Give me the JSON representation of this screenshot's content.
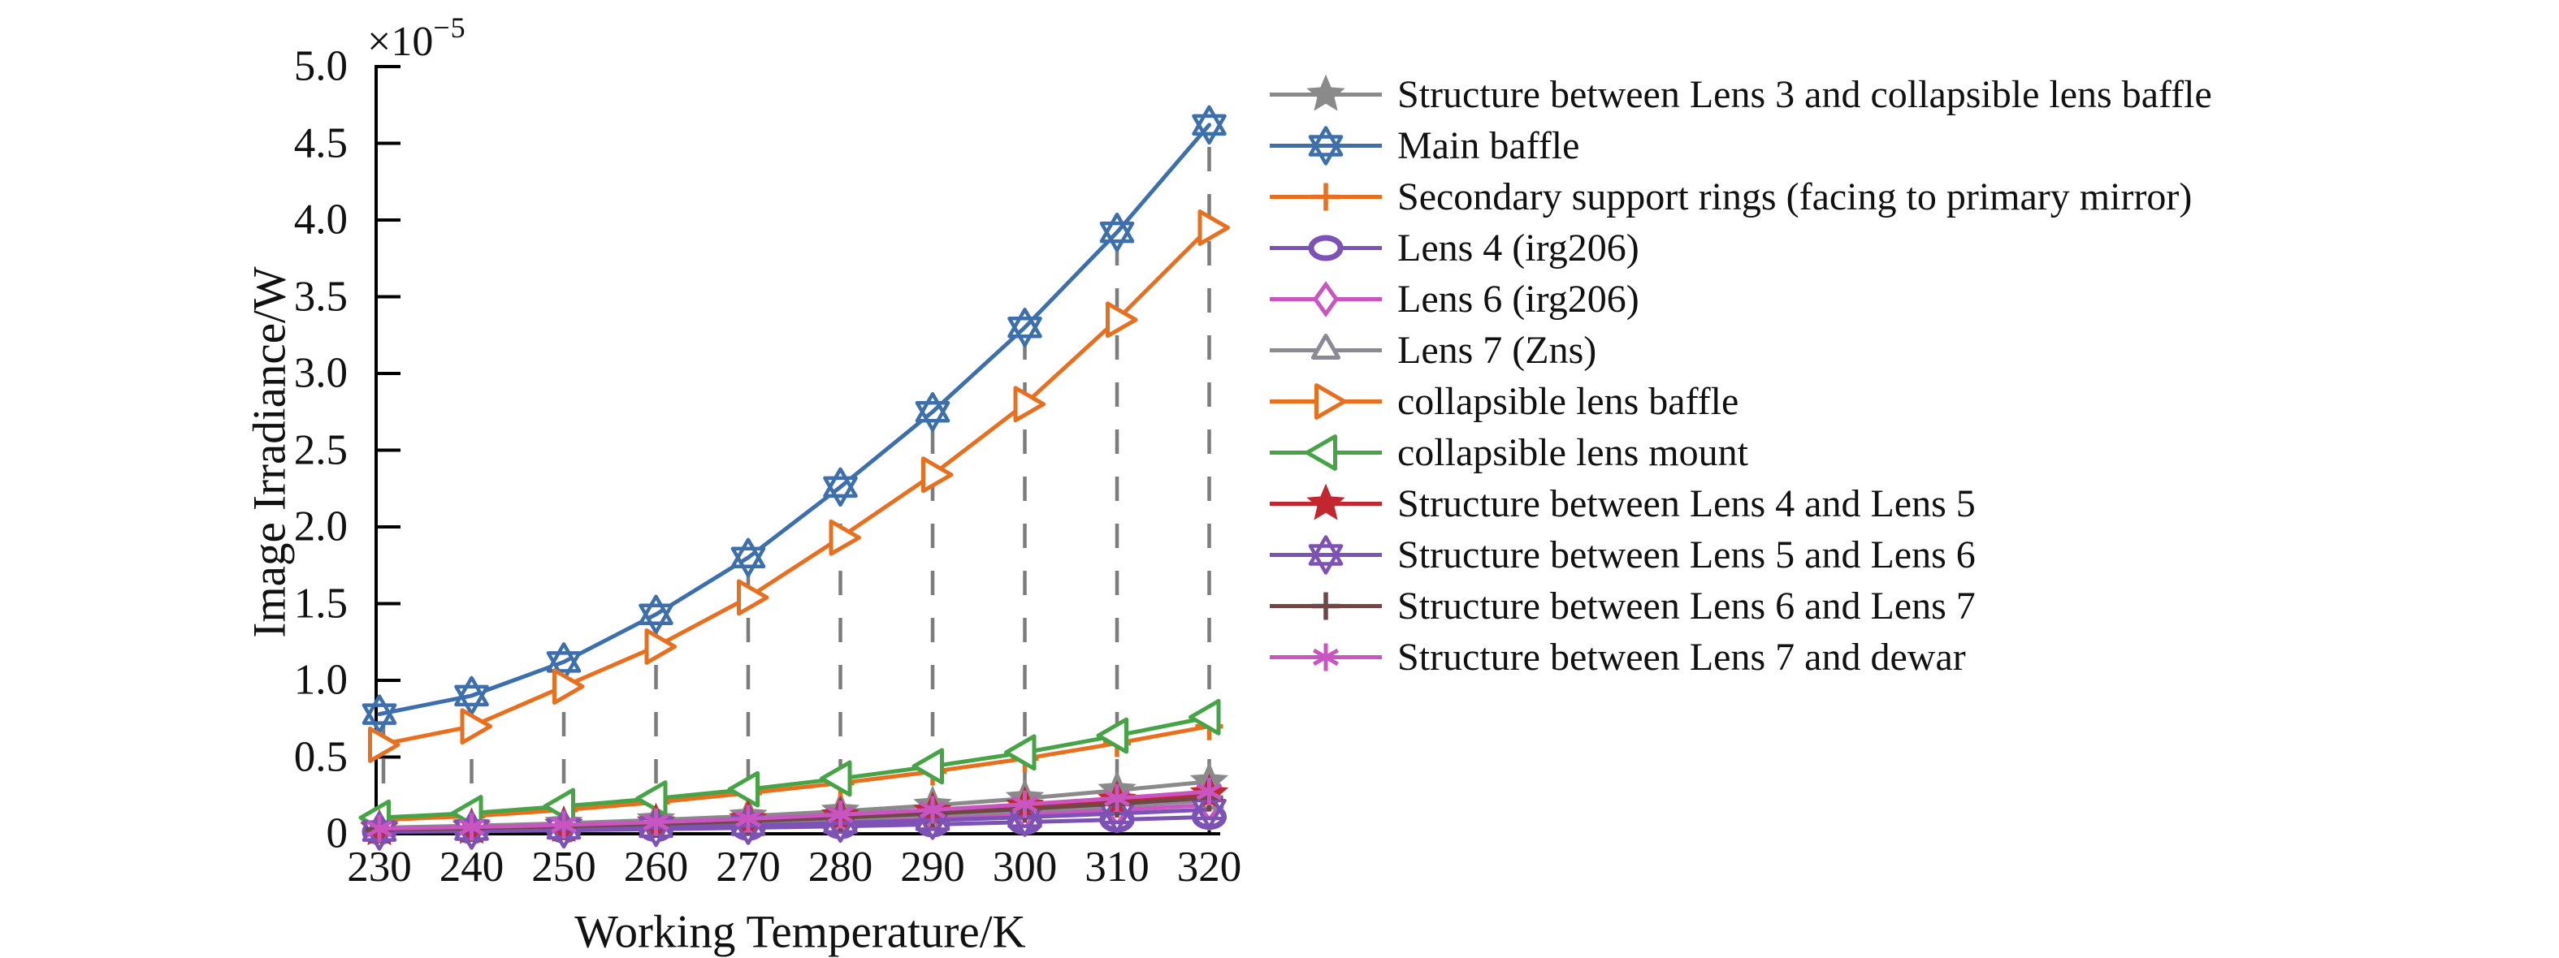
{
  "figure": {
    "background": "#FFFFFF",
    "text_color": "#111111",
    "axis_color": "#000000"
  },
  "chart_data": {
    "type": "line",
    "title": "",
    "xlabel": "Working Temperature/K",
    "ylabel": "Image Irradiance/W",
    "offset_text": {
      "base": "×10",
      "exponent": "−5"
    },
    "x": [
      230,
      240,
      250,
      260,
      270,
      280,
      290,
      300,
      310,
      320
    ],
    "xlim": [
      230,
      320
    ],
    "ylim": [
      0,
      5.0
    ],
    "y_unit_multiplier": "1e-5",
    "xtick_labels": [
      "230",
      "240",
      "250",
      "260",
      "270",
      "280",
      "290",
      "300",
      "310",
      "320"
    ],
    "ytick_values": [
      0,
      0.5,
      1.0,
      1.5,
      2.0,
      2.5,
      3.0,
      3.5,
      4.0,
      4.5,
      5.0
    ],
    "ytick_labels": [
      "0",
      "0.5",
      "1.0",
      "1.5",
      "2.0",
      "2.5",
      "3.0",
      "3.5",
      "4.0",
      "4.5",
      "5.0"
    ],
    "grid": {
      "style": "dashed vertical stems from x-axis up to Main baffle data points",
      "color": "#7C7C7C"
    },
    "legend_position": "outside right, no border box",
    "series": [
      {
        "label": "Structure between Lens 3 and collapsible lens baffle",
        "color": "#8A8A8A",
        "marker": "star5",
        "values": [
          0.04,
          0.052,
          0.068,
          0.09,
          0.115,
          0.147,
          0.185,
          0.23,
          0.283,
          0.34
        ]
      },
      {
        "label": "Main baffle",
        "color": "#3E6FAD",
        "marker": "hexagram",
        "values": [
          0.78,
          0.9,
          1.12,
          1.43,
          1.8,
          2.26,
          2.75,
          3.3,
          3.92,
          4.62
        ]
      },
      {
        "label": "Secondary support rings (facing to primary mirror)",
        "color": "#E86F1E",
        "marker": "plus",
        "values": [
          0.09,
          0.115,
          0.155,
          0.205,
          0.265,
          0.33,
          0.405,
          0.49,
          0.59,
          0.7
        ]
      },
      {
        "label": "Lens 4 (irg206)",
        "color": "#7C52B4",
        "marker": "ellipse",
        "values": [
          0.013,
          0.017,
          0.023,
          0.03,
          0.039,
          0.049,
          0.061,
          0.076,
          0.092,
          0.11
        ]
      },
      {
        "label": "Lens 6 (irg206)",
        "color": "#C855C0",
        "marker": "diamond",
        "values": [
          0.022,
          0.029,
          0.039,
          0.051,
          0.066,
          0.084,
          0.105,
          0.129,
          0.157,
          0.188
        ]
      },
      {
        "label": "Lens 7 (Zns)",
        "color": "#8A8A94",
        "marker": "triangle-up",
        "values": [
          0.026,
          0.034,
          0.045,
          0.059,
          0.076,
          0.097,
          0.121,
          0.149,
          0.181,
          0.217
        ]
      },
      {
        "label": "collapsible lens baffle",
        "color": "#E86F1E",
        "marker": "triangle-right",
        "values": [
          0.58,
          0.7,
          0.96,
          1.22,
          1.54,
          1.93,
          2.34,
          2.8,
          3.35,
          3.95
        ]
      },
      {
        "label": "collapsible lens mount",
        "color": "#46A346",
        "marker": "triangle-left",
        "values": [
          0.105,
          0.135,
          0.18,
          0.23,
          0.29,
          0.36,
          0.44,
          0.53,
          0.64,
          0.76
        ]
      },
      {
        "label": "Structure between Lens 4 and Lens 5",
        "color": "#C2272F",
        "marker": "star5",
        "values": [
          0.031,
          0.041,
          0.054,
          0.071,
          0.092,
          0.117,
          0.146,
          0.18,
          0.218,
          0.26
        ]
      },
      {
        "label": "Structure between Lens 5 and Lens 6",
        "color": "#7C52B4",
        "marker": "hexagram",
        "values": [
          0.018,
          0.024,
          0.032,
          0.042,
          0.055,
          0.07,
          0.088,
          0.108,
          0.132,
          0.158
        ]
      },
      {
        "label": "Structure between Lens 6 and Lens 7",
        "color": "#6F4747",
        "marker": "plus",
        "values": [
          0.028,
          0.037,
          0.049,
          0.064,
          0.083,
          0.105,
          0.132,
          0.162,
          0.196,
          0.235
        ]
      },
      {
        "label": "Structure between Lens 7 and dewar",
        "color": "#C855C0",
        "marker": "asterisk",
        "values": [
          0.034,
          0.044,
          0.058,
          0.076,
          0.098,
          0.125,
          0.156,
          0.192,
          0.232,
          0.275
        ]
      }
    ]
  }
}
